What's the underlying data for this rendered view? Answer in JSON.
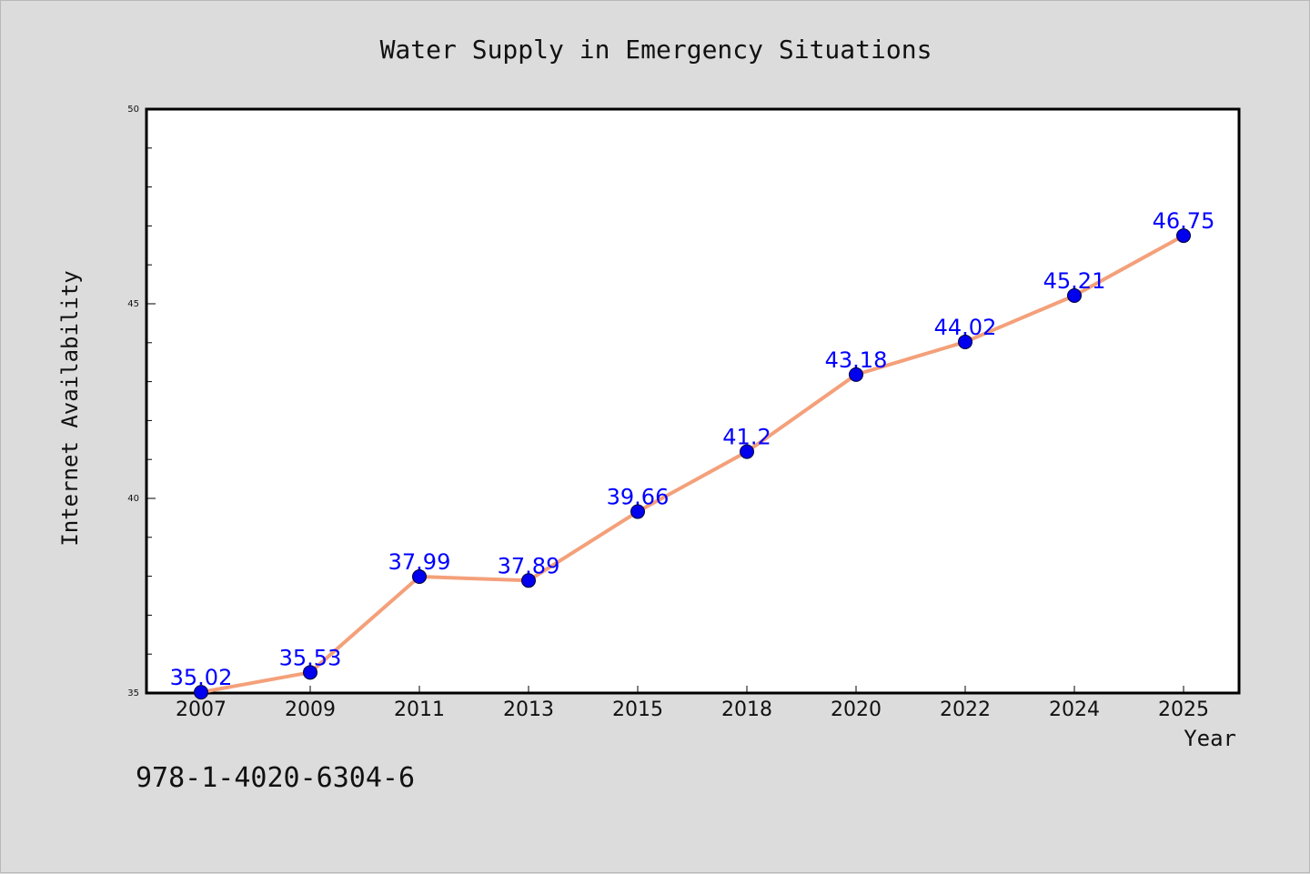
{
  "chart_data": {
    "type": "line",
    "title": "Water Supply in Emergency Situations",
    "xlabel": "Year",
    "ylabel": "Internet Availability",
    "categories": [
      "2007",
      "2009",
      "2011",
      "2013",
      "2015",
      "2018",
      "2020",
      "2022",
      "2024",
      "2025"
    ],
    "series": [
      {
        "values": [
          35.02,
          35.53,
          37.99,
          37.89,
          39.66,
          41.2,
          43.18,
          44.02,
          45.21,
          46.75
        ],
        "data_labels": [
          "35.02",
          "35.53",
          "37.99",
          "37.89",
          "39.66",
          "41.2",
          "43.18",
          "44.02",
          "45.21",
          "46.75"
        ],
        "line_color": "#f4a07a",
        "marker_color": "#0000ee"
      }
    ],
    "ylim": [
      35,
      50
    ],
    "yticks": [
      35,
      40,
      45,
      50
    ],
    "ytick_labels": [
      "35",
      "40",
      "45",
      "50"
    ],
    "grid": false,
    "label_color": "#0000ff"
  },
  "annotation": {
    "text": "978-1-4020-6304-6"
  },
  "colors": {
    "background": "#dcdcdc",
    "plot_background": "#ffffff"
  }
}
